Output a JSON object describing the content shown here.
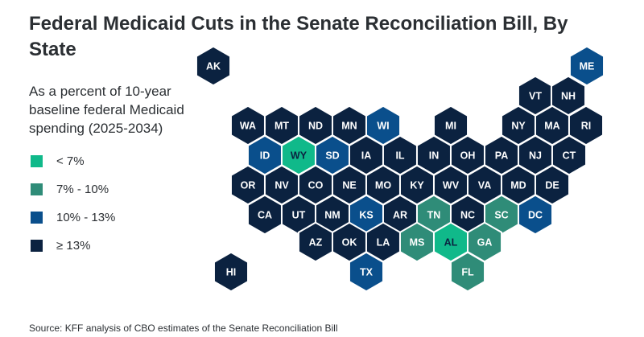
{
  "title": "Federal Medicaid Cuts in the Senate Reconciliation Bill, By State",
  "subtitle": "As a percent of 10-year baseline federal Medicaid spending (2025-2034)",
  "source": "Source: KFF analysis of CBO estimates of the Senate Reconciliation Bill",
  "legend": [
    {
      "label": "< 7%",
      "color": "#10b98a"
    },
    {
      "label": "7% - 10%",
      "color": "#2f8c78"
    },
    {
      "label": "10% - 13%",
      "color": "#0a4f8c"
    },
    {
      "label": "≥ 13%",
      "color": "#0b2240"
    }
  ],
  "chart_data": {
    "type": "choropleth-hexmap",
    "bins": [
      "< 7%",
      "7% - 10%",
      "10% - 13%",
      "≥ 13%"
    ],
    "states": [
      {
        "abbr": "AK",
        "bin": 3
      },
      {
        "abbr": "ME",
        "bin": 2
      },
      {
        "abbr": "VT",
        "bin": 3
      },
      {
        "abbr": "NH",
        "bin": 3
      },
      {
        "abbr": "WA",
        "bin": 3
      },
      {
        "abbr": "MT",
        "bin": 3
      },
      {
        "abbr": "ND",
        "bin": 3
      },
      {
        "abbr": "MN",
        "bin": 3
      },
      {
        "abbr": "WI",
        "bin": 2
      },
      {
        "abbr": "MI",
        "bin": 3
      },
      {
        "abbr": "NY",
        "bin": 3
      },
      {
        "abbr": "MA",
        "bin": 3
      },
      {
        "abbr": "RI",
        "bin": 3
      },
      {
        "abbr": "ID",
        "bin": 2
      },
      {
        "abbr": "WY",
        "bin": 0
      },
      {
        "abbr": "SD",
        "bin": 2
      },
      {
        "abbr": "IA",
        "bin": 3
      },
      {
        "abbr": "IL",
        "bin": 3
      },
      {
        "abbr": "IN",
        "bin": 3
      },
      {
        "abbr": "OH",
        "bin": 3
      },
      {
        "abbr": "PA",
        "bin": 3
      },
      {
        "abbr": "NJ",
        "bin": 3
      },
      {
        "abbr": "CT",
        "bin": 3
      },
      {
        "abbr": "OR",
        "bin": 3
      },
      {
        "abbr": "NV",
        "bin": 3
      },
      {
        "abbr": "CO",
        "bin": 3
      },
      {
        "abbr": "NE",
        "bin": 3
      },
      {
        "abbr": "MO",
        "bin": 3
      },
      {
        "abbr": "KY",
        "bin": 3
      },
      {
        "abbr": "WV",
        "bin": 3
      },
      {
        "abbr": "VA",
        "bin": 3
      },
      {
        "abbr": "MD",
        "bin": 3
      },
      {
        "abbr": "DE",
        "bin": 3
      },
      {
        "abbr": "CA",
        "bin": 3
      },
      {
        "abbr": "UT",
        "bin": 3
      },
      {
        "abbr": "NM",
        "bin": 3
      },
      {
        "abbr": "KS",
        "bin": 2
      },
      {
        "abbr": "AR",
        "bin": 3
      },
      {
        "abbr": "TN",
        "bin": 1
      },
      {
        "abbr": "NC",
        "bin": 3
      },
      {
        "abbr": "SC",
        "bin": 1
      },
      {
        "abbr": "DC",
        "bin": 2
      },
      {
        "abbr": "AZ",
        "bin": 3
      },
      {
        "abbr": "OK",
        "bin": 3
      },
      {
        "abbr": "LA",
        "bin": 3
      },
      {
        "abbr": "MS",
        "bin": 1
      },
      {
        "abbr": "AL",
        "bin": 0
      },
      {
        "abbr": "GA",
        "bin": 1
      },
      {
        "abbr": "HI",
        "bin": 3
      },
      {
        "abbr": "TX",
        "bin": 2
      },
      {
        "abbr": "FL",
        "bin": 1
      }
    ]
  }
}
